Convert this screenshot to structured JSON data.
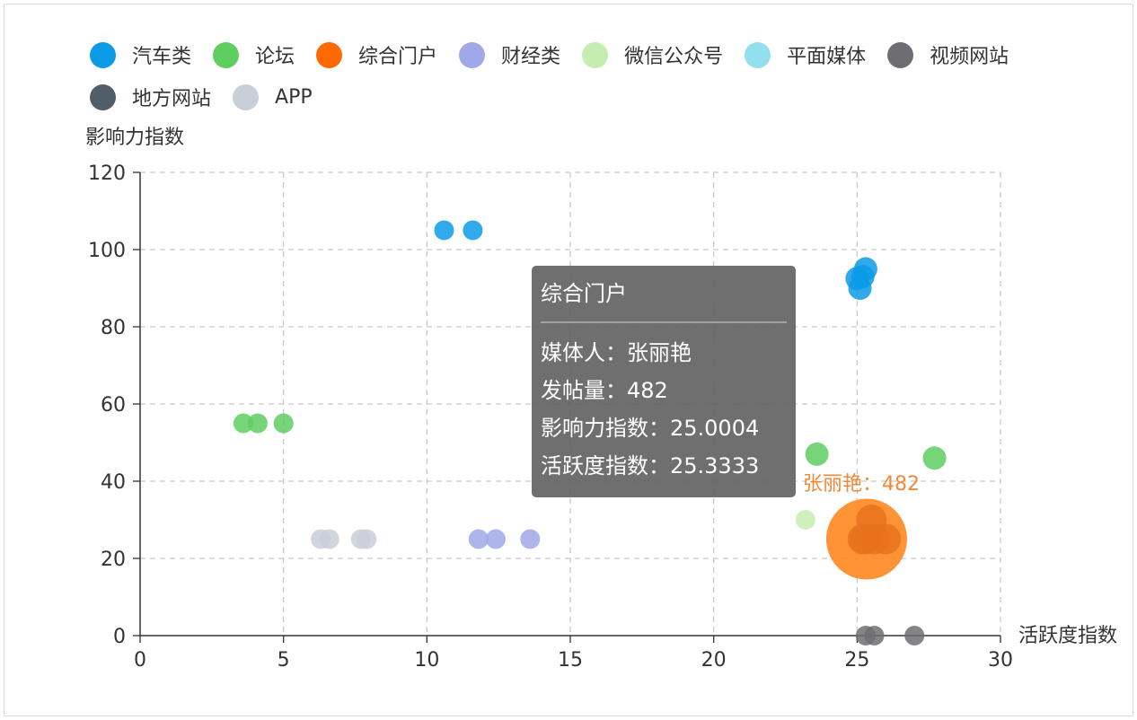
{
  "chart_data": {
    "type": "scatter",
    "ylabel": "影响力指数",
    "xlabel": "活跃度指数",
    "xlim": [
      0,
      30
    ],
    "ylim": [
      0,
      120
    ],
    "xticks": [
      "0",
      "5",
      "10",
      "15",
      "20",
      "25",
      "30"
    ],
    "yticks": [
      "0",
      "20",
      "40",
      "60",
      "80",
      "100",
      "120"
    ],
    "grid": true,
    "legend_position": "top",
    "series": [
      {
        "name": "汽车类",
        "color": "#0c9be6",
        "points": [
          [
            10.6,
            105
          ],
          [
            11.6,
            105
          ],
          [
            25.0,
            92.5
          ],
          [
            25.3,
            95
          ],
          [
            25.1,
            90
          ],
          [
            25.2,
            93
          ]
        ]
      },
      {
        "name": "论坛",
        "color": "#5fce61",
        "points": [
          [
            3.6,
            55
          ],
          [
            4.1,
            55
          ],
          [
            5.0,
            55
          ],
          [
            23.6,
            47
          ],
          [
            27.7,
            46
          ]
        ]
      },
      {
        "name": "综合门户",
        "color": "#ff6a00",
        "points": [
          [
            25.3,
            25.0004
          ],
          [
            25.5,
            30
          ],
          [
            25.2,
            25
          ],
          [
            25.6,
            25
          ],
          [
            26.0,
            25
          ]
        ]
      },
      {
        "name": "财经类",
        "color": "#9fa8e8",
        "points": [
          [
            11.8,
            25
          ],
          [
            12.4,
            25
          ],
          [
            13.6,
            25
          ]
        ]
      },
      {
        "name": "微信公众号",
        "color": "#c5edb0",
        "points": [
          [
            23.2,
            30
          ]
        ]
      },
      {
        "name": "平面媒体",
        "color": "#92e0ee",
        "points": []
      },
      {
        "name": "视频网站",
        "color": "#6e6e72",
        "points": [
          [
            25.3,
            0
          ],
          [
            25.6,
            0
          ],
          [
            27.0,
            0
          ]
        ]
      },
      {
        "name": "地方网站",
        "color": "#505e69",
        "points": []
      },
      {
        "name": "APP",
        "color": "#c8cfd8",
        "points": [
          [
            6.3,
            25
          ],
          [
            6.6,
            25
          ],
          [
            7.7,
            25
          ],
          [
            7.9,
            25
          ]
        ]
      }
    ],
    "highlight": {
      "series": "综合门户",
      "x": 25.3333,
      "y": 25.0004,
      "label": "张丽艳：482"
    }
  },
  "tooltip": {
    "title": "综合门户",
    "lines": [
      "媒体人：张丽艳",
      "发帖量：482",
      "影响力指数：25.0004",
      "活跃度指数：25.3333"
    ]
  }
}
